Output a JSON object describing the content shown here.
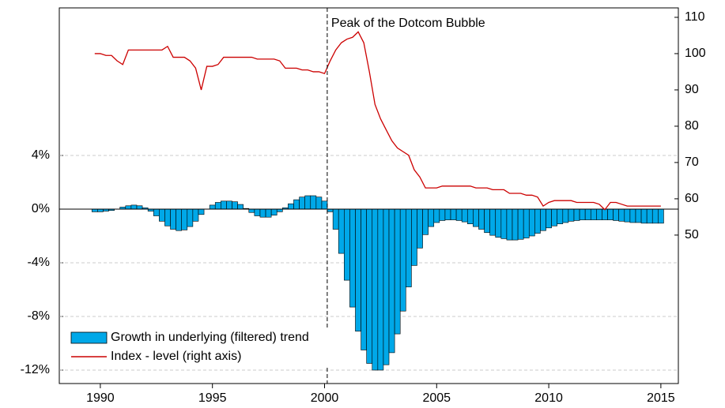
{
  "chart_data": {
    "type": "bar-line",
    "x": [
      1989.75,
      1990.0,
      1990.25,
      1990.5,
      1990.75,
      1991.0,
      1991.25,
      1991.5,
      1991.75,
      1992.0,
      1992.25,
      1992.5,
      1992.75,
      1993.0,
      1993.25,
      1993.5,
      1993.75,
      1994.0,
      1994.25,
      1994.5,
      1994.75,
      1995.0,
      1995.25,
      1995.5,
      1995.75,
      1996.0,
      1996.25,
      1996.5,
      1996.75,
      1997.0,
      1997.25,
      1997.5,
      1997.75,
      1998.0,
      1998.25,
      1998.5,
      1998.75,
      1999.0,
      1999.25,
      1999.5,
      1999.75,
      2000.0,
      2000.25,
      2000.5,
      2000.75,
      2001.0,
      2001.25,
      2001.5,
      2001.75,
      2002.0,
      2002.25,
      2002.5,
      2002.75,
      2003.0,
      2003.25,
      2003.5,
      2003.75,
      2004.0,
      2004.25,
      2004.5,
      2004.75,
      2005.0,
      2005.25,
      2005.5,
      2005.75,
      2006.0,
      2006.25,
      2006.5,
      2006.75,
      2007.0,
      2007.25,
      2007.5,
      2007.75,
      2008.0,
      2008.25,
      2008.5,
      2008.75,
      2009.0,
      2009.25,
      2009.5,
      2009.75,
      2010.0,
      2010.25,
      2010.5,
      2010.75,
      2011.0,
      2011.25,
      2011.5,
      2011.75,
      2012.0,
      2012.25,
      2012.5,
      2012.75,
      2013.0,
      2013.25,
      2013.5,
      2013.75,
      2014.0,
      2014.25,
      2014.5,
      2014.75,
      2015.0
    ],
    "series": [
      {
        "name": "Growth in underlying (filtered) trend",
        "color": "#00a8e8",
        "values": [
          -0.2,
          -0.2,
          -0.15,
          -0.1,
          0.0,
          0.15,
          0.25,
          0.3,
          0.25,
          0.1,
          -0.15,
          -0.5,
          -0.9,
          -1.25,
          -1.5,
          -1.6,
          -1.55,
          -1.3,
          -0.9,
          -0.4,
          0.0,
          0.3,
          0.5,
          0.6,
          0.6,
          0.55,
          0.35,
          0.05,
          -0.25,
          -0.5,
          -0.6,
          -0.6,
          -0.45,
          -0.2,
          0.1,
          0.4,
          0.7,
          0.9,
          1.0,
          1.0,
          0.9,
          0.6,
          -0.2,
          -1.5,
          -3.3,
          -5.3,
          -7.3,
          -9.1,
          -10.5,
          -11.5,
          -12.0,
          -12.0,
          -11.6,
          -10.7,
          -9.3,
          -7.6,
          -5.8,
          -4.2,
          -2.9,
          -1.9,
          -1.3,
          -1.0,
          -0.85,
          -0.8,
          -0.8,
          -0.85,
          -0.95,
          -1.1,
          -1.3,
          -1.5,
          -1.75,
          -1.95,
          -2.1,
          -2.2,
          -2.3,
          -2.3,
          -2.25,
          -2.15,
          -2.0,
          -1.8,
          -1.6,
          -1.4,
          -1.25,
          -1.1,
          -1.0,
          -0.9,
          -0.85,
          -0.8,
          -0.8,
          -0.8,
          -0.8,
          -0.8,
          -0.8,
          -0.85,
          -0.9,
          -0.95,
          -1.0,
          -1.0,
          -1.05,
          -1.05,
          -1.05,
          -1.05
        ]
      },
      {
        "name": "Index - level (right axis)",
        "color": "#cc0000",
        "axis": "y2",
        "values": [
          100,
          100,
          99.5,
          99.5,
          98,
          97,
          101,
          101,
          101,
          101,
          101,
          101,
          101,
          102,
          99,
          99,
          99,
          98,
          96,
          90,
          96.5,
          96.5,
          97,
          99,
          99,
          99,
          99,
          99,
          99,
          98.5,
          98.5,
          98.5,
          98.5,
          98,
          96,
          96,
          96,
          95.5,
          95.5,
          95,
          95,
          94.5,
          98,
          101,
          103,
          104,
          104.5,
          106,
          103,
          95,
          86,
          82,
          79,
          76,
          74,
          73,
          72,
          68,
          66,
          63,
          63,
          63,
          63.5,
          63.5,
          63.5,
          63.5,
          63.5,
          63.5,
          63,
          63,
          63,
          62.5,
          62.5,
          62.5,
          61.5,
          61.5,
          61.5,
          61,
          61,
          60.5,
          58,
          59,
          59.5,
          59.5,
          59.5,
          59.5,
          59,
          59,
          59,
          59,
          58.5,
          57,
          59,
          59,
          58.5,
          58,
          58,
          58,
          58,
          58,
          58,
          58
        ]
      }
    ],
    "xlim": [
      1988.17,
      2015.78
    ],
    "xticks": [
      1990,
      1995,
      2000,
      2005,
      2010,
      2015
    ],
    "ylim": [
      -13,
      15
    ],
    "yticks": [
      {
        "value": -12,
        "label": "-12%"
      },
      {
        "value": -8,
        "label": "-8%"
      },
      {
        "value": -4,
        "label": "-4%"
      },
      {
        "value": 0,
        "label": "0%"
      },
      {
        "value": 4,
        "label": "4%"
      }
    ],
    "y2lim": [
      9.1,
      112.6
    ],
    "y2ticks": [
      50,
      60,
      70,
      80,
      90,
      100,
      110
    ],
    "grid": true,
    "legend": "lower left",
    "annotation": {
      "text": "Peak of the Dotcom Bubble",
      "x": 2000.12
    }
  }
}
